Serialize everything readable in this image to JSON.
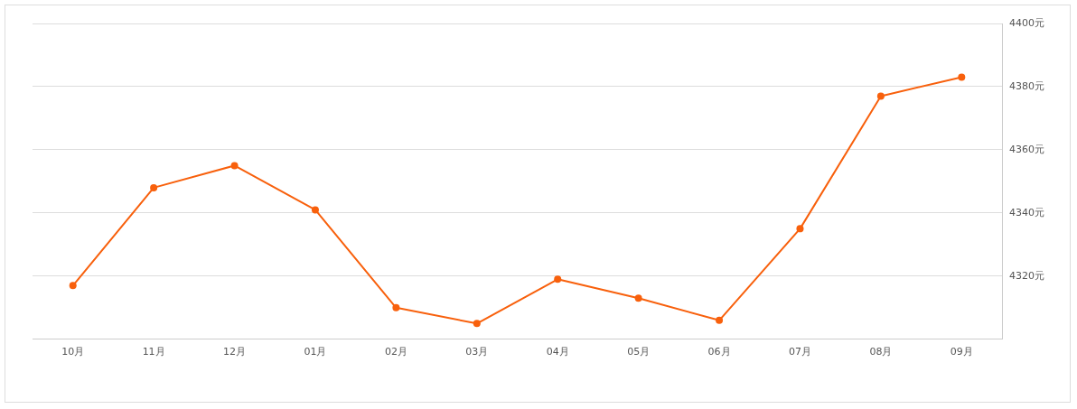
{
  "chart_data": {
    "type": "line",
    "categories": [
      "10月",
      "11月",
      "12月",
      "01月",
      "02月",
      "03月",
      "04月",
      "05月",
      "06月",
      "07月",
      "08月",
      "09月"
    ],
    "series": [
      {
        "color": "#f8600c",
        "values": [
          4317,
          4348,
          4355,
          4341,
          4310,
          4305,
          4319,
          4313,
          4306,
          4335,
          4377,
          4383
        ]
      }
    ],
    "ylim": [
      4300,
      4400
    ],
    "yticks": [
      {
        "value": 4320,
        "label": "4320元"
      },
      {
        "value": 4340,
        "label": "4340元"
      },
      {
        "value": 4360,
        "label": "4360元"
      },
      {
        "value": 4380,
        "label": "4380元"
      },
      {
        "value": 4400,
        "label": "4400元"
      }
    ],
    "grid": "y",
    "legend": false,
    "marker": "circle",
    "line_style": "solid"
  }
}
